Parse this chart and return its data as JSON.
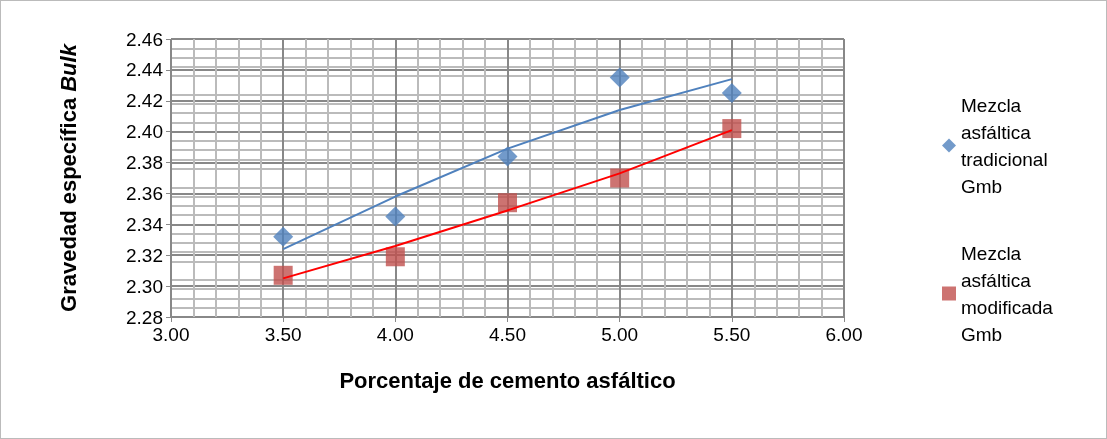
{
  "chart_data": {
    "type": "scatter",
    "xlabel": "Porcentaje de cemento asfáltico",
    "ylabel": "Gravedad específica Bulk",
    "x": [
      3.5,
      4.0,
      4.5,
      5.0,
      5.5
    ],
    "series": [
      {
        "name": "Mezcla asfáltica tradicional Gmb",
        "color": "#4f81bd",
        "marker": "diamond",
        "values": [
          2.332,
          2.345,
          2.384,
          2.435,
          2.425
        ]
      },
      {
        "name": "Mezcla asfáltica modificada Gmb",
        "color": "#c0504d",
        "marker": "square",
        "values": [
          2.307,
          2.319,
          2.354,
          2.37,
          2.402
        ]
      },
      {
        "type": "line",
        "color": "#4f81bd",
        "marker": "none",
        "values": [
          2.324,
          2.358,
          2.389,
          2.414,
          2.434
        ]
      },
      {
        "type": "line",
        "color": "#ff0000",
        "marker": "none",
        "values": [
          2.305,
          2.326,
          2.349,
          2.373,
          2.401
        ]
      }
    ],
    "xlim": [
      3,
      6
    ],
    "xticks": [
      {
        "value": 3,
        "label": "3.00"
      },
      {
        "value": 3.5,
        "label": "3.50"
      },
      {
        "value": 4,
        "label": "4.00"
      },
      {
        "value": 4.5,
        "label": "4.50"
      },
      {
        "value": 5,
        "label": "5.00"
      },
      {
        "value": 5.5,
        "label": "5.50"
      },
      {
        "value": 6,
        "label": "6.00"
      }
    ],
    "ylim": [
      2.28,
      2.46
    ],
    "yticks": [
      2.28,
      {
        "value": 2.3,
        "label": "2.30"
      },
      2.32,
      2.34,
      2.36,
      2.38,
      {
        "value": 2.4,
        "label": "2.40"
      },
      2.42,
      2.44,
      2.46
    ],
    "grid": true,
    "legend": "right"
  }
}
